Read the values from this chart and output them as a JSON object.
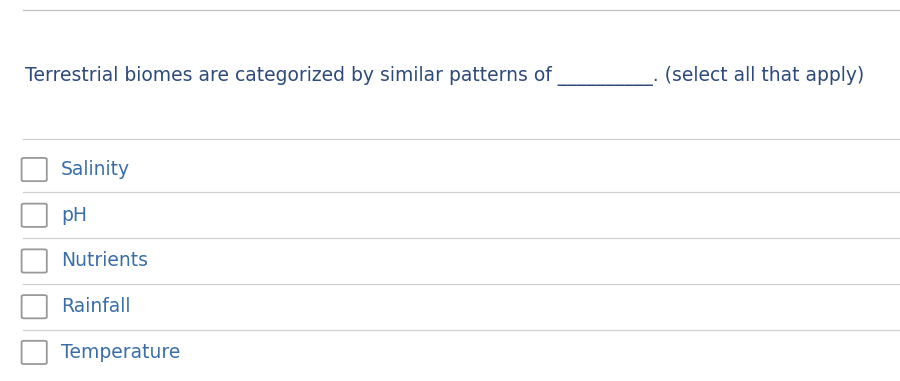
{
  "question_plain": "Terrestrial biomes are categorized by similar patterns of ",
  "question_blank": "__________",
  "question_suffix": ". (select all that apply)",
  "options": [
    "Salinity",
    "pH",
    "Nutrients",
    "Rainfall",
    "Temperature"
  ],
  "bg_color": "#ffffff",
  "option_text_color": "#3a6ea8",
  "question_color": "#2d4a7a",
  "line_color": "#d0d0d0",
  "checkbox_edge_color": "#999999",
  "top_line_color": "#c0c0c0",
  "question_fontsize": 13.5,
  "option_fontsize": 13.5,
  "fig_width": 9.0,
  "fig_height": 3.81,
  "dpi": 100
}
